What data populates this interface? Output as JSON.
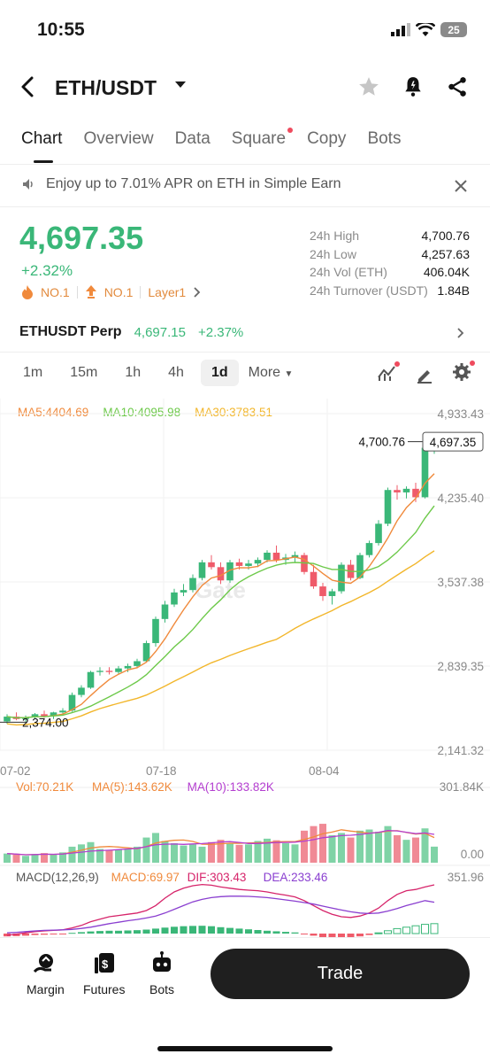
{
  "status": {
    "time": "10:55",
    "battery": "25"
  },
  "header": {
    "pair": "ETH/USDT"
  },
  "tabs": [
    {
      "label": "Chart",
      "active": true
    },
    {
      "label": "Overview"
    },
    {
      "label": "Data"
    },
    {
      "label": "Square",
      "dot": true
    },
    {
      "label": "Copy"
    },
    {
      "label": "Bots"
    }
  ],
  "promo": {
    "text": "Enjoy up to 7.01% APR on ETH in Simple Earn"
  },
  "ticker": {
    "price": "4,697.35",
    "change": "+2.32%",
    "badge1": "NO.1",
    "badge2": "NO.1",
    "badge3": "Layer1"
  },
  "stats": [
    {
      "k": "24h High",
      "v": "4,700.76"
    },
    {
      "k": "24h Low",
      "v": "4,257.63"
    },
    {
      "k": "24h Vol (ETH)",
      "v": "406.04K"
    },
    {
      "k": "24h Turnover (USDT)",
      "v": "1.84B"
    }
  ],
  "perp": {
    "name": "ETHUSDT Perp",
    "price": "4,697.15",
    "change": "+2.37%"
  },
  "timeframes": [
    "1m",
    "15m",
    "1h",
    "4h",
    "1d",
    "More"
  ],
  "active_timeframe": "1d",
  "ma_legend": [
    {
      "label": "MA5:4404.69",
      "color": "#f08a3c"
    },
    {
      "label": "MA10:4095.98",
      "color": "#6dc94a"
    },
    {
      "label": "MA30:3783.51",
      "color": "#f2b62b"
    }
  ],
  "price_axis": [
    "4,933.43",
    "4,235.40",
    "3,537.38",
    "2,839.35",
    "2,141.32"
  ],
  "date_axis": [
    "07-02",
    "07-18",
    "08-04"
  ],
  "high_label": "4,700.76",
  "low_label": "2,374.00",
  "last_price_label": "4,697.35",
  "watermark": "Gate",
  "volume_legend": [
    {
      "label": "Vol:70.21K",
      "color": "#f08a3c"
    },
    {
      "label": "MA(5):143.62K",
      "color": "#f08a3c"
    },
    {
      "label": "MA(10):133.82K",
      "color": "#b43fd0"
    }
  ],
  "volume_axis": [
    "301.84K",
    "0.00"
  ],
  "macd_legend": [
    {
      "label": "MACD(12,26,9)",
      "color": "#555555"
    },
    {
      "label": "MACD:69.97",
      "color": "#f08a3c"
    },
    {
      "label": "DIF:303.43",
      "color": "#d6246a"
    },
    {
      "label": "DEA:233.46",
      "color": "#8a3fd0"
    }
  ],
  "macd_axis": [
    "351.96"
  ],
  "colors": {
    "up": "#3ab778",
    "down": "#ef5b6a",
    "accent": "#1f1f1f"
  },
  "chart_data": {
    "type": "candlestick",
    "candles": [
      [
        2380,
        2440,
        2360,
        2420
      ],
      [
        2420,
        2455,
        2390,
        2400
      ],
      [
        2400,
        2430,
        2374,
        2415
      ],
      [
        2415,
        2450,
        2400,
        2440
      ],
      [
        2440,
        2470,
        2410,
        2425
      ],
      [
        2425,
        2460,
        2400,
        2455
      ],
      [
        2455,
        2490,
        2440,
        2470
      ],
      [
        2470,
        2620,
        2460,
        2600
      ],
      [
        2600,
        2680,
        2580,
        2660
      ],
      [
        2660,
        2800,
        2650,
        2790
      ],
      [
        2790,
        2830,
        2760,
        2800
      ],
      [
        2800,
        2830,
        2770,
        2790
      ],
      [
        2790,
        2840,
        2770,
        2820
      ],
      [
        2820,
        2860,
        2790,
        2840
      ],
      [
        2840,
        2900,
        2820,
        2880
      ],
      [
        2880,
        3050,
        2870,
        3030
      ],
      [
        3030,
        3250,
        3000,
        3230
      ],
      [
        3230,
        3380,
        3200,
        3350
      ],
      [
        3350,
        3480,
        3330,
        3450
      ],
      [
        3450,
        3520,
        3420,
        3470
      ],
      [
        3470,
        3600,
        3450,
        3570
      ],
      [
        3570,
        3720,
        3550,
        3700
      ],
      [
        3700,
        3760,
        3640,
        3660
      ],
      [
        3660,
        3700,
        3520,
        3550
      ],
      [
        3550,
        3720,
        3530,
        3700
      ],
      [
        3700,
        3730,
        3640,
        3670
      ],
      [
        3670,
        3720,
        3640,
        3690
      ],
      [
        3690,
        3740,
        3660,
        3720
      ],
      [
        3720,
        3800,
        3700,
        3780
      ],
      [
        3780,
        3840,
        3700,
        3720
      ],
      [
        3720,
        3770,
        3680,
        3740
      ],
      [
        3740,
        3790,
        3700,
        3760
      ],
      [
        3760,
        3780,
        3600,
        3620
      ],
      [
        3620,
        3680,
        3480,
        3500
      ],
      [
        3500,
        3530,
        3380,
        3420
      ],
      [
        3420,
        3480,
        3350,
        3460
      ],
      [
        3460,
        3700,
        3440,
        3680
      ],
      [
        3680,
        3720,
        3550,
        3570
      ],
      [
        3570,
        3780,
        3560,
        3760
      ],
      [
        3760,
        3880,
        3740,
        3860
      ],
      [
        3860,
        4050,
        3840,
        4020
      ],
      [
        4020,
        4320,
        4000,
        4300
      ],
      [
        4300,
        4340,
        4220,
        4280
      ],
      [
        4280,
        4330,
        4230,
        4310
      ],
      [
        4310,
        4360,
        4200,
        4240
      ],
      [
        4240,
        4680,
        4230,
        4650
      ],
      [
        4650,
        4700.76,
        4600,
        4697.35
      ]
    ],
    "y_range": [
      2141.32,
      4933.43
    ],
    "volume_range": [
      0,
      301.84
    ],
    "volumes": [
      40,
      35,
      30,
      38,
      42,
      36,
      45,
      70,
      80,
      90,
      60,
      55,
      58,
      62,
      70,
      110,
      130,
      95,
      85,
      75,
      80,
      70,
      90,
      100,
      85,
      78,
      80,
      95,
      105,
      98,
      85,
      80,
      140,
      160,
      170,
      120,
      130,
      110,
      140,
      145,
      135,
      160,
      120,
      100,
      110,
      150,
      70.21
    ],
    "macd_histogram": [
      -20,
      -18,
      -15,
      -10,
      -8,
      -5,
      -2,
      5,
      10,
      15,
      18,
      20,
      20,
      22,
      24,
      28,
      35,
      42,
      48,
      52,
      54,
      55,
      52,
      45,
      40,
      35,
      30,
      25,
      20,
      16,
      12,
      8,
      -5,
      -15,
      -25,
      -30,
      -28,
      -25,
      -20,
      -10,
      5,
      20,
      35,
      45,
      55,
      65,
      69.97
    ],
    "dif": [
      100,
      105,
      110,
      115,
      118,
      120,
      122,
      130,
      140,
      155,
      165,
      175,
      180,
      185,
      190,
      200,
      220,
      250,
      275,
      290,
      300,
      305,
      302,
      295,
      290,
      285,
      282,
      280,
      275,
      268,
      262,
      255,
      240,
      220,
      200,
      185,
      175,
      172,
      178,
      190,
      210,
      240,
      265,
      280,
      285,
      295,
      303.43
    ],
    "dea": [
      110,
      112,
      115,
      118,
      120,
      121,
      122,
      124,
      128,
      133,
      140,
      147,
      153,
      159,
      164,
      170,
      178,
      190,
      205,
      220,
      235,
      245,
      252,
      256,
      258,
      258,
      257,
      255,
      252,
      248,
      243,
      238,
      232,
      226,
      218,
      210,
      202,
      195,
      190,
      188,
      190,
      198,
      208,
      220,
      230,
      240,
      233.46
    ]
  }
}
